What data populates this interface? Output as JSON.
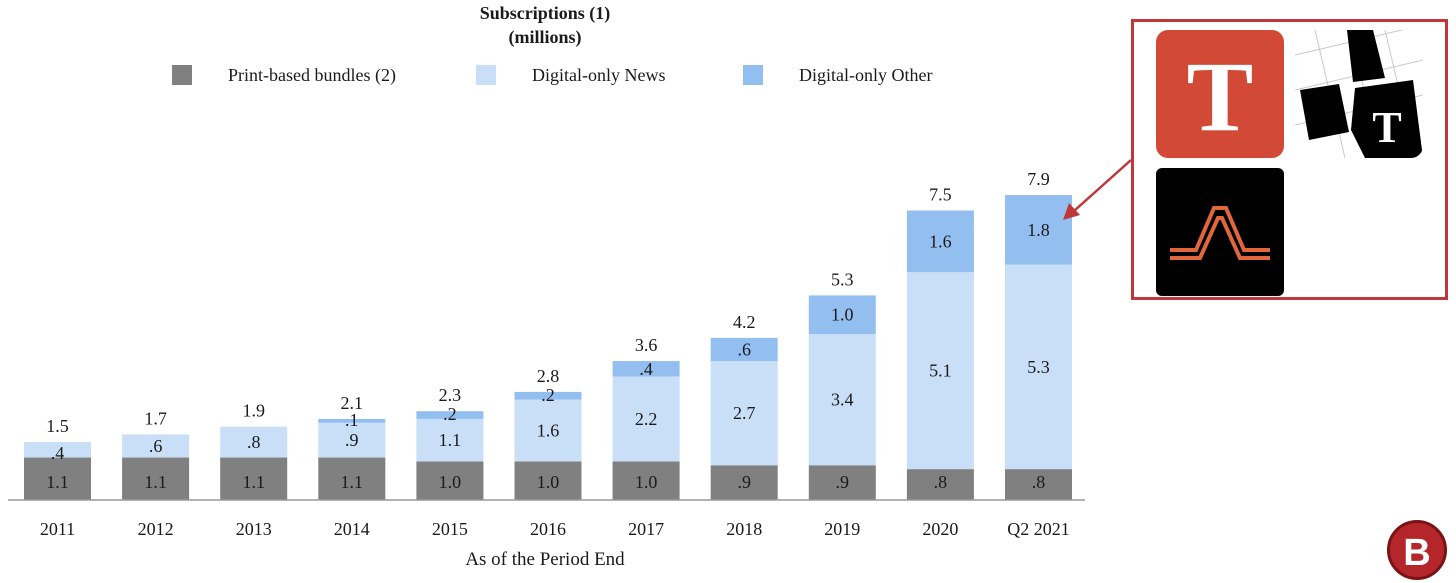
{
  "colors": {
    "print": "#808080",
    "digital_news": "#c9dff7",
    "digital_other": "#93bff0",
    "accent": "#c0373a"
  },
  "chart_data": {
    "type": "bar",
    "stacked": true,
    "title": "Subscriptions (1)",
    "subtitle": "(millions)",
    "xlabel": "As of the Period End",
    "ylabel": "",
    "ylim": [
      0,
      8.5
    ],
    "legend_position": "top",
    "grid": false,
    "categories": [
      "2011",
      "2012",
      "2013",
      "2014",
      "2015",
      "2016",
      "2017",
      "2018",
      "2019",
      "2020",
      "Q2 2021"
    ],
    "series": [
      {
        "name": "Print-based bundles (2)",
        "values": [
          1.1,
          1.1,
          1.1,
          1.1,
          1.0,
          1.0,
          1.0,
          0.9,
          0.9,
          0.8,
          0.8
        ],
        "labels": [
          "1.1",
          "1.1",
          "1.1",
          "1.1",
          "1.0",
          "1.0",
          "1.0",
          ".9",
          ".9",
          ".8",
          ".8"
        ],
        "color": "#808080"
      },
      {
        "name": "Digital-only News",
        "values": [
          0.4,
          0.6,
          0.8,
          0.9,
          1.1,
          1.6,
          2.2,
          2.7,
          3.4,
          5.1,
          5.3
        ],
        "labels": [
          ".4",
          ".6",
          ".8",
          ".9",
          "1.1",
          "1.6",
          "2.2",
          "2.7",
          "3.4",
          "5.1",
          "5.3"
        ],
        "color": "#c9dff7"
      },
      {
        "name": "Digital-only Other",
        "values": [
          0,
          0,
          0,
          0.1,
          0.2,
          0.2,
          0.4,
          0.6,
          1.0,
          1.6,
          1.8
        ],
        "labels": [
          "",
          "",
          "",
          ".1",
          ".2",
          ".2",
          ".4",
          ".6",
          "1.0",
          "1.6",
          "1.8"
        ],
        "color": "#93bff0"
      }
    ],
    "totals": [
      "1.5",
      "1.7",
      "1.9",
      "2.1",
      "2.3",
      "2.8",
      "3.6",
      "4.2",
      "5.3",
      "7.5",
      "7.9"
    ]
  },
  "callout": {
    "apps": [
      {
        "name": "nyt-news-app-icon"
      },
      {
        "name": "nyt-crossword-app-icon"
      },
      {
        "name": "wirecutter-app-icon"
      }
    ]
  }
}
